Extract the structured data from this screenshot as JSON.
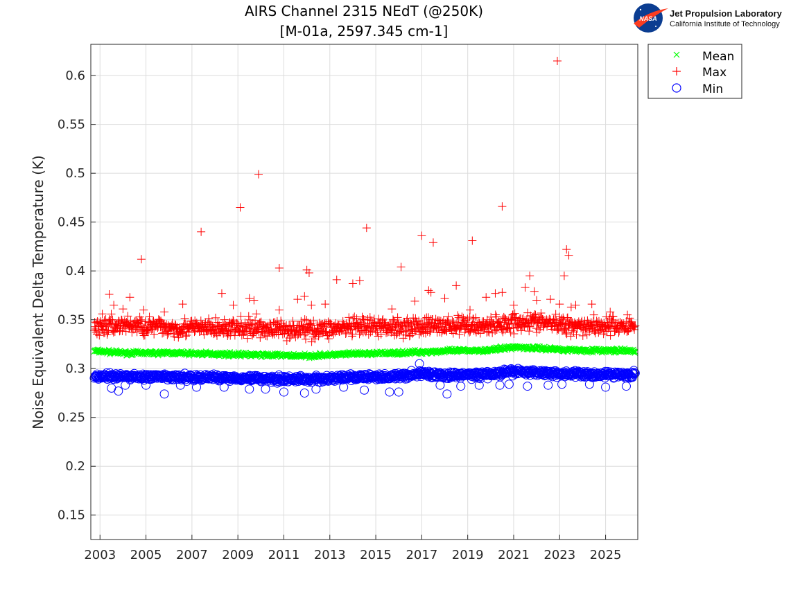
{
  "chart_data": {
    "type": "scatter",
    "title": "AIRS Channel 2315 NEdT (@250K)",
    "subtitle": "[M-01a, 2597.345 cm-1]",
    "xlabel": "",
    "ylabel": "Noise Equivalent Delta Temperature (K)",
    "xlim": [
      2002.6,
      2026.4
    ],
    "ylim": [
      0.125,
      0.632
    ],
    "x_ticks": [
      "2003",
      "2005",
      "2007",
      "2009",
      "2011",
      "2013",
      "2015",
      "2017",
      "2019",
      "2021",
      "2023",
      "2025"
    ],
    "y_ticks": [
      "0.15",
      "0.2",
      "0.25",
      "0.3",
      "0.35",
      "0.4",
      "0.45",
      "0.5",
      "0.55",
      "0.6"
    ],
    "grid": true,
    "legend_position": "outside-top-right",
    "colors": {
      "mean": "#00ff00",
      "max": "#ff0000",
      "min": "#0000ff"
    },
    "series": [
      {
        "name": "Mean",
        "marker": "x",
        "trend": [
          [
            2002.8,
            0.318
          ],
          [
            2004.0,
            0.316
          ],
          [
            2006.0,
            0.316
          ],
          [
            2008.0,
            0.315
          ],
          [
            2010.0,
            0.314
          ],
          [
            2012.0,
            0.313
          ],
          [
            2014.0,
            0.315
          ],
          [
            2016.0,
            0.316
          ],
          [
            2018.0,
            0.318
          ],
          [
            2020.0,
            0.319
          ],
          [
            2021.0,
            0.322
          ],
          [
            2022.0,
            0.321
          ],
          [
            2023.5,
            0.319
          ],
          [
            2026.3,
            0.318
          ]
        ],
        "spread": 0.003
      },
      {
        "name": "Max",
        "marker": "+",
        "trend": [
          [
            2002.8,
            0.342
          ],
          [
            2004.0,
            0.345
          ],
          [
            2006.0,
            0.342
          ],
          [
            2008.0,
            0.341
          ],
          [
            2010.0,
            0.341
          ],
          [
            2012.0,
            0.34
          ],
          [
            2014.0,
            0.342
          ],
          [
            2016.0,
            0.343
          ],
          [
            2018.0,
            0.344
          ],
          [
            2020.0,
            0.344
          ],
          [
            2021.5,
            0.349
          ],
          [
            2023.0,
            0.345
          ],
          [
            2024.5,
            0.344
          ],
          [
            2026.3,
            0.344
          ]
        ],
        "spread": 0.014,
        "outliers": [
          [
            2003.1,
            0.356
          ],
          [
            2003.4,
            0.376
          ],
          [
            2003.6,
            0.365
          ],
          [
            2004.0,
            0.361
          ],
          [
            2004.3,
            0.373
          ],
          [
            2004.8,
            0.412
          ],
          [
            2004.9,
            0.36
          ],
          [
            2005.8,
            0.358
          ],
          [
            2006.6,
            0.366
          ],
          [
            2007.4,
            0.44
          ],
          [
            2008.3,
            0.377
          ],
          [
            2008.8,
            0.365
          ],
          [
            2009.1,
            0.465
          ],
          [
            2009.5,
            0.372
          ],
          [
            2009.7,
            0.37
          ],
          [
            2009.8,
            0.356
          ],
          [
            2009.9,
            0.499
          ],
          [
            2010.8,
            0.36
          ],
          [
            2010.8,
            0.403
          ],
          [
            2011.6,
            0.371
          ],
          [
            2011.9,
            0.374
          ],
          [
            2012.0,
            0.401
          ],
          [
            2012.1,
            0.398
          ],
          [
            2012.2,
            0.365
          ],
          [
            2012.8,
            0.366
          ],
          [
            2013.3,
            0.391
          ],
          [
            2014.0,
            0.387
          ],
          [
            2014.3,
            0.39
          ],
          [
            2014.6,
            0.444
          ],
          [
            2015.7,
            0.361
          ],
          [
            2016.1,
            0.404
          ],
          [
            2016.7,
            0.369
          ],
          [
            2017.0,
            0.436
          ],
          [
            2017.3,
            0.38
          ],
          [
            2017.4,
            0.378
          ],
          [
            2017.5,
            0.429
          ],
          [
            2018.0,
            0.372
          ],
          [
            2018.5,
            0.385
          ],
          [
            2019.1,
            0.36
          ],
          [
            2019.2,
            0.431
          ],
          [
            2019.8,
            0.373
          ],
          [
            2020.2,
            0.377
          ],
          [
            2020.5,
            0.466
          ],
          [
            2020.5,
            0.378
          ],
          [
            2021.0,
            0.365
          ],
          [
            2021.5,
            0.383
          ],
          [
            2021.7,
            0.395
          ],
          [
            2021.9,
            0.379
          ],
          [
            2022.0,
            0.37
          ],
          [
            2022.6,
            0.371
          ],
          [
            2022.9,
            0.615
          ],
          [
            2023.0,
            0.366
          ],
          [
            2023.2,
            0.395
          ],
          [
            2023.3,
            0.422
          ],
          [
            2023.4,
            0.416
          ],
          [
            2023.5,
            0.363
          ],
          [
            2023.7,
            0.365
          ],
          [
            2024.4,
            0.366
          ],
          [
            2025.2,
            0.358
          ]
        ]
      },
      {
        "name": "Min",
        "marker": "o",
        "trend": [
          [
            2002.8,
            0.292
          ],
          [
            2004.0,
            0.292
          ],
          [
            2006.0,
            0.291
          ],
          [
            2008.0,
            0.291
          ],
          [
            2010.0,
            0.29
          ],
          [
            2012.0,
            0.289
          ],
          [
            2014.0,
            0.291
          ],
          [
            2016.0,
            0.292
          ],
          [
            2017.0,
            0.295
          ],
          [
            2018.0,
            0.293
          ],
          [
            2020.0,
            0.294
          ],
          [
            2021.0,
            0.297
          ],
          [
            2022.0,
            0.296
          ],
          [
            2024.0,
            0.294
          ],
          [
            2026.3,
            0.294
          ]
        ],
        "spread": 0.005,
        "outliers": [
          [
            2003.5,
            0.28
          ],
          [
            2003.8,
            0.277
          ],
          [
            2004.1,
            0.283
          ],
          [
            2005.0,
            0.283
          ],
          [
            2005.8,
            0.274
          ],
          [
            2006.5,
            0.283
          ],
          [
            2007.2,
            0.281
          ],
          [
            2008.4,
            0.281
          ],
          [
            2009.5,
            0.279
          ],
          [
            2010.2,
            0.279
          ],
          [
            2011.0,
            0.276
          ],
          [
            2011.9,
            0.275
          ],
          [
            2012.4,
            0.279
          ],
          [
            2013.6,
            0.281
          ],
          [
            2014.5,
            0.278
          ],
          [
            2015.6,
            0.276
          ],
          [
            2016.0,
            0.276
          ],
          [
            2016.9,
            0.305
          ],
          [
            2017.8,
            0.283
          ],
          [
            2018.1,
            0.274
          ],
          [
            2018.7,
            0.282
          ],
          [
            2019.5,
            0.283
          ],
          [
            2020.4,
            0.283
          ],
          [
            2020.8,
            0.284
          ],
          [
            2021.6,
            0.282
          ],
          [
            2022.5,
            0.283
          ],
          [
            2023.1,
            0.284
          ],
          [
            2024.3,
            0.284
          ],
          [
            2025.0,
            0.281
          ],
          [
            2025.9,
            0.282
          ]
        ]
      }
    ]
  },
  "logo": {
    "badge": "NASA",
    "title": "Jet Propulsion Laboratory",
    "subtitle": "California Institute of Technology"
  }
}
